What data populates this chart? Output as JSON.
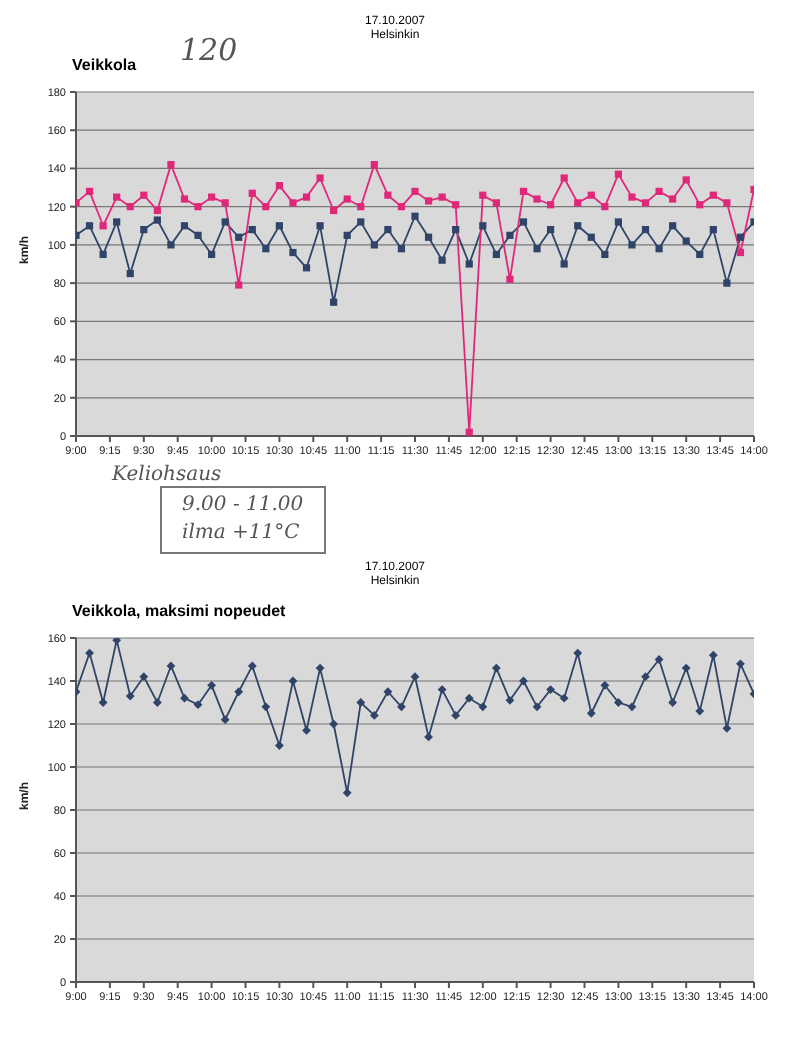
{
  "chart_data": [
    {
      "type": "line",
      "title": "Veikkola",
      "subtitle": "17.10.2007\nHelsinkin",
      "ylabel": "km/h",
      "x": [
        9.0,
        9.1,
        9.2,
        9.3,
        9.4,
        9.5,
        9.6,
        9.7,
        9.8,
        9.9,
        10.0,
        10.1,
        10.2,
        10.3,
        10.4,
        10.5,
        10.6,
        10.7,
        10.8,
        10.9,
        11.0,
        11.1,
        11.2,
        11.3,
        11.4,
        11.5,
        11.6,
        11.7,
        11.8,
        11.9,
        12.0,
        12.1,
        12.2,
        12.3,
        12.4,
        12.5,
        12.6,
        12.7,
        12.8,
        12.9,
        13.0,
        13.1,
        13.2,
        13.3,
        13.4,
        13.5,
        13.6,
        13.7,
        13.8,
        13.9,
        14.0
      ],
      "series": [
        {
          "color": "#2f4468",
          "values": [
            105,
            110,
            95,
            112,
            85,
            108,
            113,
            100,
            110,
            105,
            95,
            112,
            104,
            108,
            98,
            110,
            96,
            88,
            110,
            70,
            105,
            112,
            100,
            108,
            98,
            115,
            104,
            92,
            108,
            90,
            110,
            95,
            105,
            112,
            98,
            108,
            90,
            110,
            104,
            95,
            112,
            100,
            108,
            98,
            110,
            102,
            95,
            108,
            80,
            104,
            112
          ]
        },
        {
          "color": "#e0287a",
          "values": [
            122,
            128,
            110,
            125,
            120,
            126,
            118,
            142,
            124,
            120,
            125,
            122,
            79,
            127,
            120,
            131,
            122,
            125,
            135,
            118,
            124,
            120,
            142,
            126,
            120,
            128,
            123,
            125,
            121,
            2,
            126,
            122,
            82,
            128,
            124,
            121,
            135,
            122,
            126,
            120,
            137,
            125,
            122,
            128,
            124,
            134,
            121,
            126,
            122,
            96,
            129
          ]
        }
      ],
      "xlim": [
        9,
        14
      ],
      "xticks": [
        {
          "value": 9,
          "label": "9:00"
        },
        {
          "value": 9.25,
          "label": "9:15"
        },
        {
          "value": 9.5,
          "label": "9:30"
        },
        {
          "value": 9.75,
          "label": "9:45"
        },
        {
          "value": 10,
          "label": "10:00"
        },
        {
          "value": 10.25,
          "label": "10:15"
        },
        {
          "value": 10.5,
          "label": "10:30"
        },
        {
          "value": 10.75,
          "label": "10:45"
        },
        {
          "value": 11,
          "label": "11:00"
        },
        {
          "value": 11.25,
          "label": "11:15"
        },
        {
          "value": 11.5,
          "label": "11:30"
        },
        {
          "value": 11.75,
          "label": "11:45"
        },
        {
          "value": 12,
          "label": "12:00"
        },
        {
          "value": 12.25,
          "label": "12:15"
        },
        {
          "value": 12.5,
          "label": "12:30"
        },
        {
          "value": 12.75,
          "label": "12:45"
        },
        {
          "value": 13,
          "label": "13:00"
        },
        {
          "value": 13.25,
          "label": "13:15"
        },
        {
          "value": 13.5,
          "label": "13:30"
        },
        {
          "value": 13.75,
          "label": "13:45"
        },
        {
          "value": 14,
          "label": "14:00"
        }
      ],
      "ylim": [
        0,
        180
      ],
      "yticks": [
        0,
        20,
        40,
        60,
        80,
        100,
        120,
        140,
        160,
        180
      ],
      "grid": "y",
      "marker": "square",
      "line_style": "solid",
      "annotations": [
        "120",
        "Keliohsaus",
        "9.00 - 11.00",
        "ilma +11°C"
      ]
    },
    {
      "type": "line",
      "title": "Veikkola, maksimi nopeudet",
      "subtitle": "17.10.2007\nHelsinkin",
      "ylabel": "km/h",
      "x": [
        9.0,
        9.1,
        9.2,
        9.3,
        9.4,
        9.5,
        9.6,
        9.7,
        9.8,
        9.9,
        10.0,
        10.1,
        10.2,
        10.3,
        10.4,
        10.5,
        10.6,
        10.7,
        10.8,
        10.9,
        11.0,
        11.1,
        11.2,
        11.3,
        11.4,
        11.5,
        11.6,
        11.7,
        11.8,
        11.9,
        12.0,
        12.1,
        12.2,
        12.3,
        12.4,
        12.5,
        12.6,
        12.7,
        12.8,
        12.9,
        13.0,
        13.1,
        13.2,
        13.3,
        13.4,
        13.5,
        13.6,
        13.7,
        13.8,
        13.9,
        14.0
      ],
      "series": [
        {
          "color": "#2f4468",
          "values": [
            135,
            153,
            130,
            159,
            133,
            142,
            130,
            147,
            132,
            129,
            138,
            122,
            135,
            147,
            128,
            110,
            140,
            117,
            146,
            120,
            88,
            130,
            124,
            135,
            128,
            142,
            114,
            136,
            124,
            132,
            128,
            146,
            131,
            140,
            128,
            136,
            132,
            153,
            125,
            138,
            130,
            128,
            142,
            150,
            130,
            146,
            126,
            152,
            118,
            148,
            134
          ]
        }
      ],
      "xlim": [
        9,
        14
      ],
      "xticks": [
        {
          "value": 9,
          "label": "9:00"
        },
        {
          "value": 9.25,
          "label": "9:15"
        },
        {
          "value": 9.5,
          "label": "9:30"
        },
        {
          "value": 9.75,
          "label": "9:45"
        },
        {
          "value": 10,
          "label": "10:00"
        },
        {
          "value": 10.25,
          "label": "10:15"
        },
        {
          "value": 10.5,
          "label": "10:30"
        },
        {
          "value": 10.75,
          "label": "10:45"
        },
        {
          "value": 11,
          "label": "11:00"
        },
        {
          "value": 11.25,
          "label": "11:15"
        },
        {
          "value": 11.5,
          "label": "11:30"
        },
        {
          "value": 11.75,
          "label": "11:45"
        },
        {
          "value": 12,
          "label": "12:00"
        },
        {
          "value": 12.25,
          "label": "12:15"
        },
        {
          "value": 12.5,
          "label": "12:30"
        },
        {
          "value": 12.75,
          "label": "12:45"
        },
        {
          "value": 13,
          "label": "13:00"
        },
        {
          "value": 13.25,
          "label": "13:15"
        },
        {
          "value": 13.5,
          "label": "13:30"
        },
        {
          "value": 13.75,
          "label": "13:45"
        },
        {
          "value": 14,
          "label": "14:00"
        }
      ],
      "ylim": [
        0,
        160
      ],
      "yticks": [
        0,
        20,
        40,
        60,
        80,
        100,
        120,
        140,
        160
      ],
      "grid": "y",
      "marker": "diamond",
      "line_style": "solid"
    }
  ]
}
